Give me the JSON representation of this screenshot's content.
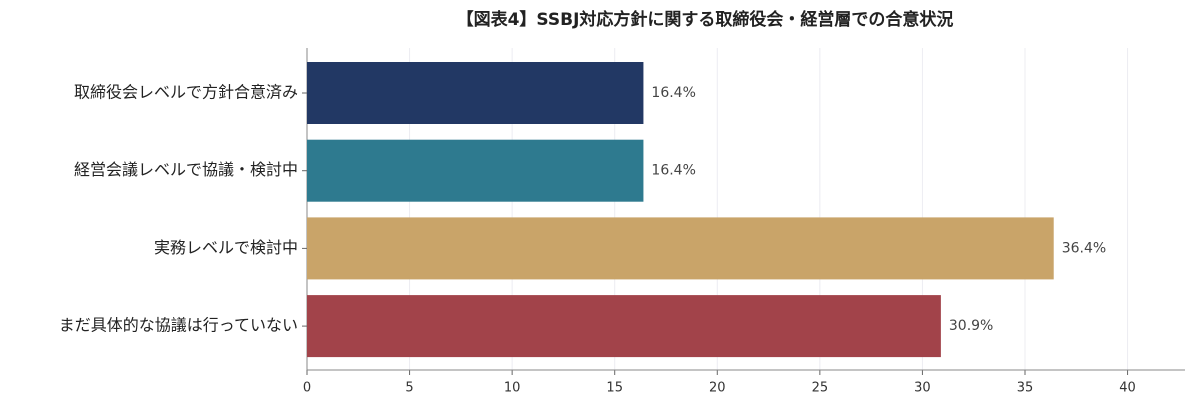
{
  "chart_data": {
    "type": "bar",
    "orientation": "horizontal",
    "title": "【図表4】SSBJ対応方針に関する取締役会・経営層での合意状況",
    "categories": [
      "取締役会レベルで方針合意済み",
      "経営会議レベルで協議・検討中",
      "実務レベルで検討中",
      "まだ具体的な協議は行っていない"
    ],
    "values": [
      16.4,
      16.4,
      36.4,
      30.9
    ],
    "value_labels": [
      "16.4%",
      "16.4%",
      "36.4%",
      "30.9%"
    ],
    "colors": [
      "#223864",
      "#2e7a8f",
      "#c9a469",
      "#a2434a"
    ],
    "xlim": [
      0,
      42.8
    ],
    "xticks": [
      0,
      5,
      10,
      15,
      20,
      25,
      30,
      35,
      40
    ],
    "grid": true
  }
}
